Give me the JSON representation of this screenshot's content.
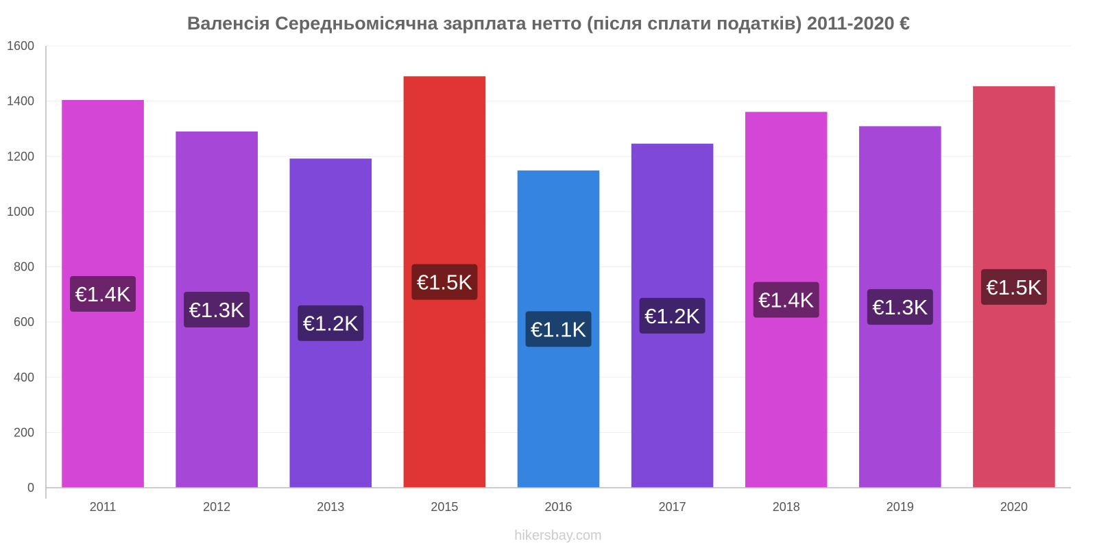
{
  "chart_data": {
    "type": "bar",
    "title": "Валенсія Середньомісячна зарплата нетто (після сплати податків) 2011-2020 €",
    "xlabel": "",
    "ylabel": "",
    "ylim": [
      0,
      1600
    ],
    "y_ticks": [
      "0",
      "200",
      "400",
      "600",
      "800",
      "1000",
      "1200",
      "1400",
      "1600"
    ],
    "grid": true,
    "legend": "none",
    "categories": [
      "2011",
      "2012",
      "2013",
      "2015",
      "2016",
      "2017",
      "2018",
      "2019",
      "2020"
    ],
    "values": [
      1404,
      1290,
      1192,
      1490,
      1149,
      1246,
      1361,
      1309,
      1454
    ],
    "data_labels": [
      "€1.4K",
      "€1.3K",
      "€1.2K",
      "€1.5K",
      "€1.1K",
      "€1.2K",
      "€1.4K",
      "€1.3K",
      "€1.5K"
    ],
    "bar_colors": [
      "#d447d6",
      "#a747d8",
      "#8048d9",
      "#e03535",
      "#3584e0",
      "#8048d9",
      "#d447d6",
      "#a747d8",
      "#d84766"
    ],
    "label_colors": [
      "#6b2369",
      "#55236a",
      "#3f246b",
      "#741b1b",
      "#1b426f",
      "#3f246b",
      "#6b2369",
      "#55236a",
      "#6b2333"
    ]
  },
  "watermark": "hikersbay.com"
}
